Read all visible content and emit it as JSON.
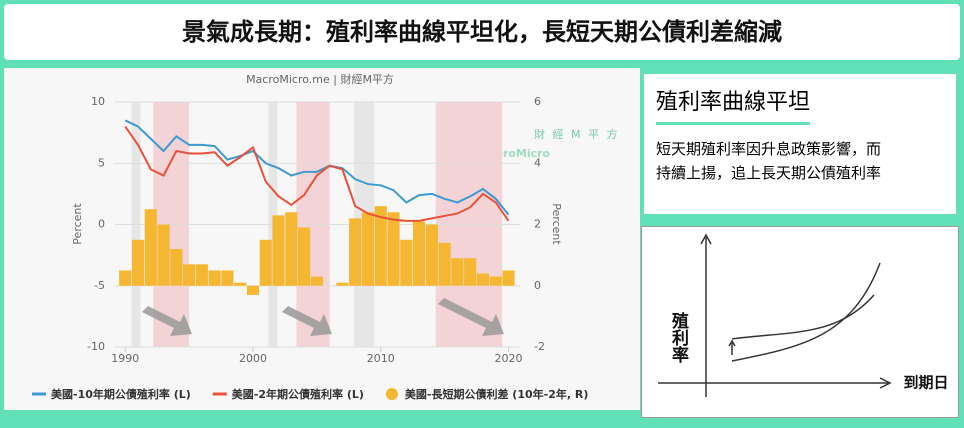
{
  "header": {
    "title": "景氣成長期：殖利率曲線平坦化，長短天期公債利差縮減"
  },
  "chart_data": {
    "type": "line",
    "source": "MacroMicro.me | 財經M平方",
    "watermark": {
      "cn": "財 經 M 平 方",
      "en": "MacroMicro"
    },
    "ylabel": "Percent",
    "y2label": "Percent",
    "x": [
      1990,
      1991,
      1992,
      1993,
      1994,
      1995,
      1996,
      1997,
      1998,
      1999,
      2000,
      2001,
      2002,
      2003,
      2004,
      2005,
      2006,
      2007,
      2008,
      2009,
      2010,
      2011,
      2012,
      2013,
      2014,
      2015,
      2016,
      2017,
      2018,
      2019,
      2020
    ],
    "xlim": [
      1989.2,
      2020.9
    ],
    "xticks": [
      1990,
      2000,
      2010,
      2020
    ],
    "ylim": [
      -10,
      10
    ],
    "yticks": [
      -10,
      -5,
      0,
      5,
      10
    ],
    "y2lim": [
      -2,
      6
    ],
    "y2ticks": [
      -2,
      0,
      2,
      4,
      6
    ],
    "grid": true,
    "shaded_periods": [
      {
        "range": [
          1990.5,
          1991.2
        ],
        "color": "#e6e6e6"
      },
      {
        "range": [
          1992.2,
          1995
        ],
        "color": "#f3d3d5"
      },
      {
        "range": [
          2001.2,
          2001.9
        ],
        "color": "#e6e6e6"
      },
      {
        "range": [
          2003.4,
          2006
        ],
        "color": "#f3d3d5"
      },
      {
        "range": [
          2007.9,
          2009.5
        ],
        "color": "#e6e6e6"
      },
      {
        "range": [
          2014.3,
          2019.5
        ],
        "color": "#f3d3d5"
      }
    ],
    "series": [
      {
        "name": "美國-長短期公債利差 (10年-2年, R)",
        "color": "#f5b731",
        "axis": "y2",
        "type": "bar",
        "values": [
          0.5,
          1.5,
          2.5,
          2.0,
          1.2,
          0.7,
          0.7,
          0.5,
          0.5,
          0.1,
          -0.3,
          1.5,
          2.3,
          2.4,
          1.9,
          0.3,
          0.0,
          0.1,
          2.2,
          2.4,
          2.6,
          2.4,
          1.5,
          2.1,
          2.0,
          1.4,
          0.9,
          0.9,
          0.4,
          0.3,
          0.5
        ]
      },
      {
        "name": "美國-10年期公債殖利率 (L)",
        "color": "#3d9ad1",
        "type": "line",
        "values": [
          8.5,
          8.0,
          7.0,
          6.0,
          7.2,
          6.5,
          6.5,
          6.4,
          5.3,
          5.6,
          6.0,
          5.0,
          4.6,
          4.0,
          4.3,
          4.3,
          4.8,
          4.6,
          3.7,
          3.3,
          3.2,
          2.8,
          1.8,
          2.4,
          2.5,
          2.1,
          1.8,
          2.3,
          2.9,
          2.1,
          0.8
        ]
      },
      {
        "name": "美國-2年期公債殖利率 (L)",
        "color": "#e8513a",
        "type": "line",
        "values": [
          8.0,
          6.5,
          4.5,
          4.0,
          6.0,
          5.8,
          5.8,
          5.9,
          4.8,
          5.5,
          6.3,
          3.5,
          2.3,
          1.6,
          2.4,
          4.0,
          4.8,
          4.5,
          1.5,
          0.9,
          0.6,
          0.4,
          0.3,
          0.3,
          0.5,
          0.7,
          0.9,
          1.4,
          2.5,
          1.8,
          0.3
        ]
      }
    ]
  },
  "note": {
    "heading": "殖利率曲線平坦",
    "lines": [
      "短天期殖利率因升息政策影響，而",
      "持續上揚，追上長天期公債殖利率"
    ]
  },
  "diagram": {
    "ylabel": "殖利率",
    "xlabel": "到期日"
  }
}
